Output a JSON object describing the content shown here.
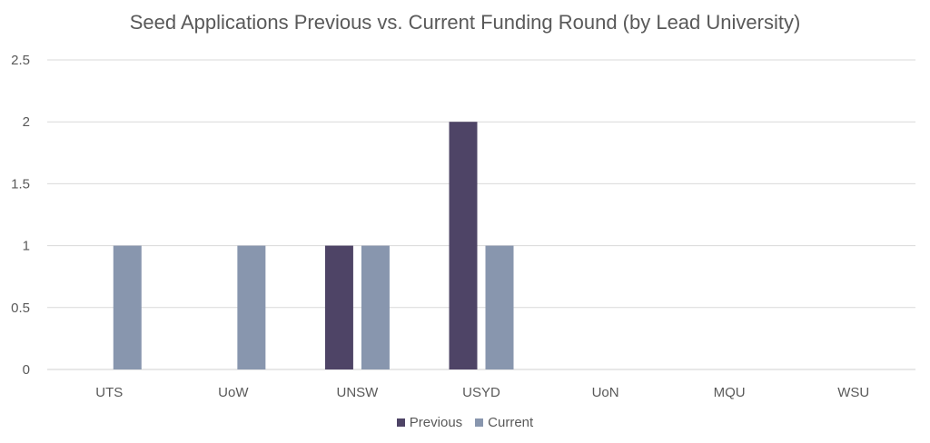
{
  "chart_data": {
    "type": "bar",
    "title": "Seed Applications Previous vs. Current Funding Round (by Lead University)",
    "xlabel": "",
    "ylabel": "",
    "categories": [
      "UTS",
      "UoW",
      "UNSW",
      "USYD",
      "UoN",
      "MQU",
      "WSU"
    ],
    "series": [
      {
        "name": "Previous",
        "color": "#4e4466",
        "values": [
          0,
          0,
          1,
          2,
          0,
          0,
          0
        ]
      },
      {
        "name": "Current",
        "color": "#8896ae",
        "values": [
          1,
          1,
          1,
          1,
          0,
          0,
          0
        ]
      }
    ],
    "ylim": [
      0,
      2.5
    ],
    "yticks": [
      "0",
      "0.5",
      "1",
      "1.5",
      "2",
      "2.5"
    ],
    "grid": true,
    "legend_position": "bottom"
  }
}
